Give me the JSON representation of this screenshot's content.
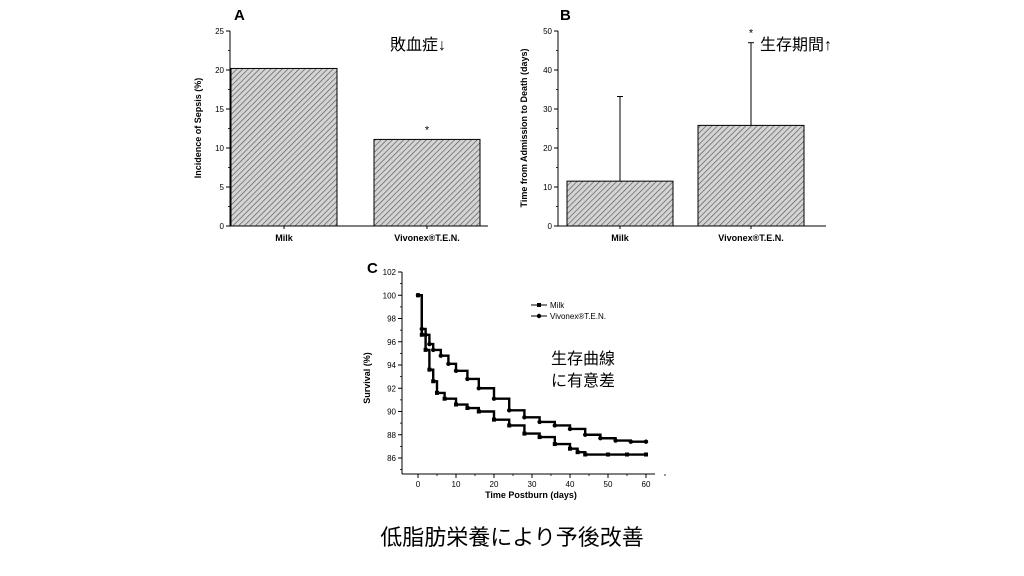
{
  "caption": "低脂肪栄養により予後改善",
  "chart_data": [
    {
      "panel": "A",
      "type": "bar",
      "ylabel": "Incidence of Sepsis (%)",
      "ylim": [
        0,
        25
      ],
      "yticks": [
        0,
        5,
        10,
        15,
        20,
        25
      ],
      "categories": [
        "Milk",
        "Vivonex®T.E.N."
      ],
      "values": [
        20.2,
        11.1
      ],
      "significance": [
        "",
        "*"
      ],
      "annotation": "敗血症↓"
    },
    {
      "panel": "B",
      "type": "bar",
      "ylabel": "Time from Admission to Death (days)",
      "ylim": [
        0,
        50
      ],
      "yticks": [
        0,
        10,
        20,
        30,
        40,
        50
      ],
      "categories": [
        "Milk",
        "Vivonex®T.E.N."
      ],
      "values": [
        11.5,
        25.8
      ],
      "error_upper": [
        33.2,
        47.0
      ],
      "significance": [
        "",
        "*"
      ],
      "annotation": "生存期間↑"
    },
    {
      "panel": "C",
      "type": "line",
      "xlabel": "Time Postburn (days)",
      "ylabel": "Survival (%)",
      "xlim": [
        0,
        60
      ],
      "ylim": [
        85,
        102
      ],
      "xticks": [
        0,
        10,
        20,
        30,
        40,
        50,
        60
      ],
      "yticks": [
        86,
        88,
        90,
        92,
        94,
        96,
        98,
        100,
        102
      ],
      "annotation": [
        "生存曲線",
        "に有意差"
      ],
      "series": [
        {
          "name": "Milk",
          "marker": "square",
          "x": [
            0,
            1,
            2,
            3,
            4,
            5,
            7,
            10,
            13,
            16,
            20,
            24,
            28,
            32,
            36,
            40,
            42,
            44,
            50,
            55,
            60
          ],
          "y": [
            100,
            96.6,
            95.3,
            93.6,
            92.6,
            91.6,
            91.1,
            90.6,
            90.3,
            90.0,
            89.3,
            88.8,
            88.1,
            87.8,
            87.2,
            86.8,
            86.5,
            86.3,
            86.3,
            86.3,
            86.3
          ]
        },
        {
          "name": "Vivonex®T.E.N.",
          "marker": "circle",
          "x": [
            0,
            1,
            2,
            3,
            4,
            6,
            8,
            10,
            13,
            16,
            20,
            24,
            28,
            32,
            36,
            40,
            44,
            48,
            52,
            56,
            60
          ],
          "y": [
            100,
            97.1,
            96.6,
            95.8,
            95.3,
            94.8,
            94.1,
            93.5,
            92.8,
            92.0,
            91.1,
            90.1,
            89.5,
            89.1,
            88.8,
            88.5,
            88.0,
            87.7,
            87.5,
            87.4,
            87.4
          ]
        }
      ]
    }
  ]
}
